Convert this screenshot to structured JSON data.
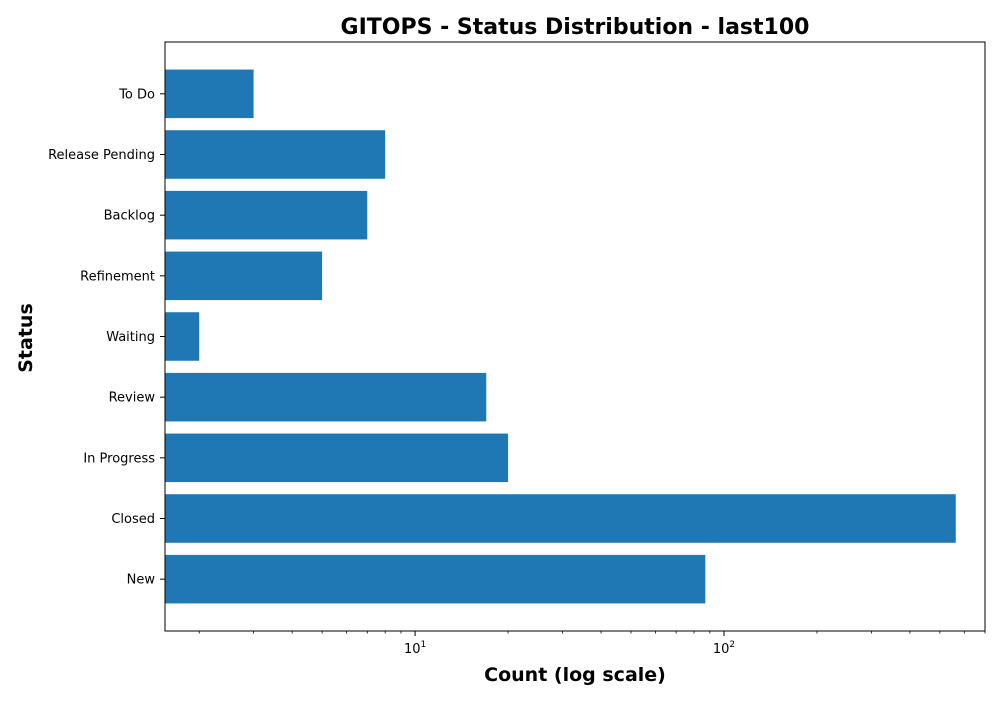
{
  "chart_data": {
    "type": "bar",
    "orientation": "horizontal",
    "title": "GITOPS - Status Distribution - last100",
    "xlabel": "Count (log scale)",
    "ylabel": "Status",
    "x_scale": "log",
    "xlim": [
      1.55,
      700
    ],
    "x_major_ticks": [
      {
        "value": 10,
        "base": "10",
        "exponent": "1"
      },
      {
        "value": 100,
        "base": "10",
        "exponent": "2"
      }
    ],
    "categories": [
      "To Do",
      "Release Pending",
      "Backlog",
      "Refinement",
      "Waiting",
      "Review",
      "In Progress",
      "Closed",
      "New"
    ],
    "values": [
      3,
      8,
      7,
      5,
      2,
      17,
      20,
      563,
      87
    ],
    "bar_color": "#1f77b4",
    "grid": false,
    "legend": "none"
  }
}
